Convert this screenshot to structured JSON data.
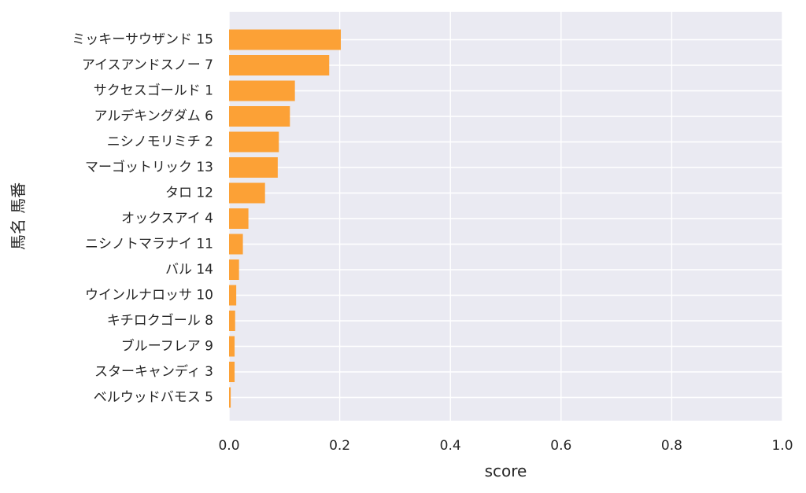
{
  "chart_data": {
    "type": "bar",
    "orientation": "horizontal",
    "title": "",
    "xlabel": "score",
    "ylabel": "馬名 馬番",
    "xlim": [
      0,
      1.0
    ],
    "xticks": [
      "0.0",
      "0.2",
      "0.4",
      "0.6",
      "0.8",
      "1.0"
    ],
    "grid": true,
    "bar_color": "#fca136",
    "background_color": "#eaeaf2",
    "categories": [
      "ミッキーサウザンド 15",
      "アイスアンドスノー 7",
      "サクセスゴールド 1",
      "アルデキングダム 6",
      "ニシノモリミチ 2",
      "マーゴットリック 13",
      "タロ 12",
      "オックスアイ 4",
      "ニシノトマラナイ 11",
      "バル 14",
      "ウインルナロッサ 10",
      "キチロクゴール 8",
      "ブルーフレア 9",
      "スターキャンディ 3",
      "ベルウッドバモス 5"
    ],
    "values": [
      0.202,
      0.181,
      0.119,
      0.11,
      0.09,
      0.088,
      0.065,
      0.035,
      0.025,
      0.018,
      0.013,
      0.011,
      0.01,
      0.01,
      0.003
    ]
  }
}
